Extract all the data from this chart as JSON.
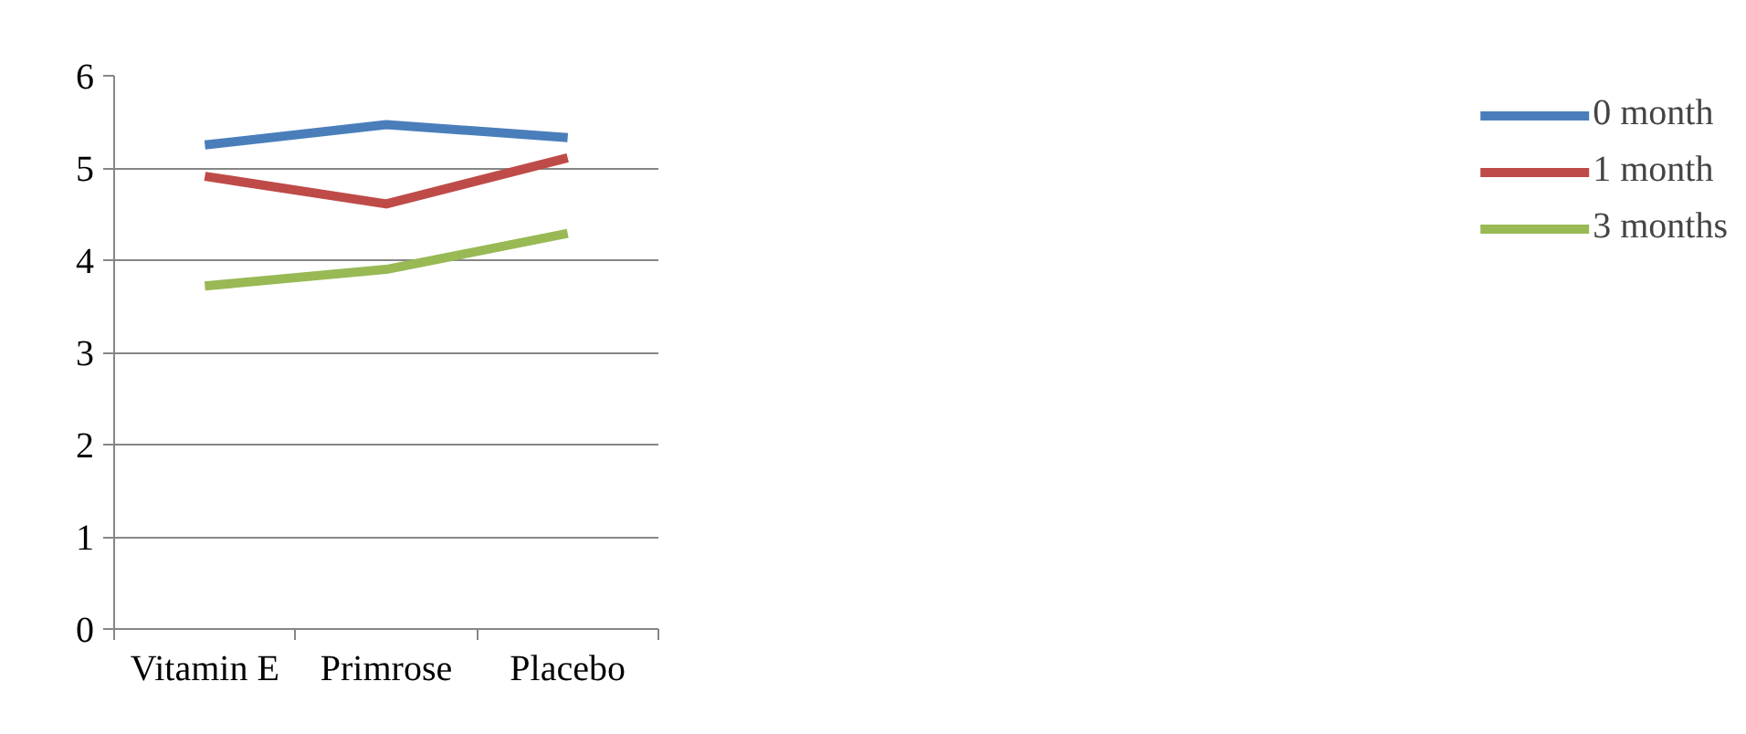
{
  "chart_data": {
    "type": "line",
    "categories": [
      "Vitamin E",
      "Primrose",
      "Placebo"
    ],
    "series": [
      {
        "name": "0 month",
        "color": "#4a7ebb",
        "values": [
          5.25,
          5.47,
          5.33
        ]
      },
      {
        "name": "1 month",
        "color": "#be4b48",
        "values": [
          4.91,
          4.61,
          5.11
        ]
      },
      {
        "name": "3 months",
        "color": "#98b954",
        "values": [
          3.72,
          3.9,
          4.29
        ]
      }
    ],
    "ylim": [
      0,
      6
    ],
    "yticks": [
      0,
      1,
      2,
      3,
      4,
      5,
      6
    ],
    "grid": "y",
    "legend": "right",
    "marker": "none",
    "line_style": "solid"
  }
}
